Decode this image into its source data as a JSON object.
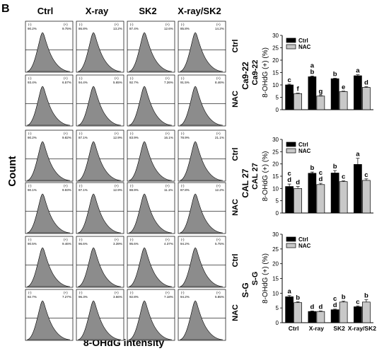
{
  "panel_label": "B",
  "flow": {
    "columns": [
      "Ctrl",
      "X-ray",
      "SK2",
      "X-ray/SK2"
    ],
    "y_title": "Count",
    "x_title": "8-OHdG intensity",
    "neg_label": "(-)",
    "pos_label": "(+)",
    "rows": [
      {
        "group": "Ca9-22",
        "label": "Ctrl",
        "panels": [
          {
            "neg": "90.2%",
            "pos": "9.75%"
          },
          {
            "neg": "86.8%",
            "pos": "13.2%"
          },
          {
            "neg": "87.4%",
            "pos": "12.6%"
          },
          {
            "neg": "85.8%",
            "pos": "14.2%"
          }
        ]
      },
      {
        "group": "Ca9-22",
        "label": "NAC",
        "panels": [
          {
            "neg": "93.4%",
            "pos": "6.57%"
          },
          {
            "neg": "94.4%",
            "pos": "5.65%"
          },
          {
            "neg": "92.7%",
            "pos": "7.26%"
          },
          {
            "neg": "91.5%",
            "pos": "8.46%"
          }
        ]
      },
      {
        "group": "CAL 27",
        "label": "Ctrl",
        "panels": [
          {
            "neg": "90.2%",
            "pos": "9.82%"
          },
          {
            "neg": "87.1%",
            "pos": "12.9%"
          },
          {
            "neg": "83.9%",
            "pos": "16.1%"
          },
          {
            "neg": "78.9%",
            "pos": "21.1%"
          }
        ]
      },
      {
        "group": "CAL 27",
        "label": "NAC",
        "panels": [
          {
            "neg": "90.1%",
            "pos": "9.93%"
          },
          {
            "neg": "87.1%",
            "pos": "12.9%"
          },
          {
            "neg": "88.9%",
            "pos": "11.1%"
          },
          {
            "neg": "87.8%",
            "pos": "12.2%"
          }
        ]
      },
      {
        "group": "S-G",
        "label": "Ctrl",
        "panels": [
          {
            "neg": "90.5%",
            "pos": "9.46%"
          },
          {
            "neg": "96.6%",
            "pos": "3.39%"
          },
          {
            "neg": "95.6%",
            "pos": "4.37%"
          },
          {
            "neg": "94.2%",
            "pos": "5.75%"
          }
        ]
      },
      {
        "group": "S-G",
        "label": "NAC",
        "panels": [
          {
            "neg": "92.7%",
            "pos": "7.27%"
          },
          {
            "neg": "96.3%",
            "pos": "3.66%"
          },
          {
            "neg": "92.8%",
            "pos": "7.18%"
          },
          {
            "neg": "94.2%",
            "pos": "5.85%"
          }
        ]
      }
    ]
  },
  "chart_data": [
    {
      "type": "bar",
      "cell_line": "Ca9-22",
      "ylabel": "8-OHdG (+) (%)",
      "ylim": [
        0,
        30
      ],
      "yticks": [
        0,
        5,
        10,
        15,
        20,
        25,
        30
      ],
      "categories": [
        "Ctrl",
        "X-ray",
        "SK2",
        "X-ray/SK2"
      ],
      "legend": "top-left",
      "series": [
        {
          "name": "Ctrl",
          "color": "#000000",
          "values": [
            10.0,
            13.3,
            12.5,
            13.7
          ],
          "errors": [
            0.3,
            0.3,
            0.2,
            0.4
          ],
          "letters": [
            "c",
            "a\nb",
            "b",
            "a"
          ]
        },
        {
          "name": "NAC",
          "color": "#c8c8c8",
          "values": [
            6.5,
            5.5,
            7.3,
            9.0
          ],
          "errors": [
            0.2,
            0.2,
            0.2,
            0.3
          ],
          "letters": [
            "f",
            "g",
            "e",
            "d"
          ]
        }
      ]
    },
    {
      "type": "bar",
      "cell_line": "CAL 27",
      "ylabel": "8-OHdG (+) (%)",
      "ylim": [
        0,
        30
      ],
      "yticks": [
        0,
        5,
        10,
        15,
        20,
        25,
        30
      ],
      "categories": [
        "Ctrl",
        "X-ray",
        "SK2",
        "X-ray/SK2"
      ],
      "legend": "top-left",
      "series": [
        {
          "name": "Ctrl",
          "color": "#000000",
          "values": [
            10.8,
            16.2,
            16.3,
            19.8
          ],
          "errors": [
            1.0,
            0.5,
            1.0,
            2.5
          ],
          "letters": [
            "c\nd",
            "b",
            "b",
            "a"
          ]
        },
        {
          "name": "NAC",
          "color": "#c8c8c8",
          "values": [
            10.0,
            11.6,
            12.8,
            13.3
          ],
          "errors": [
            0.8,
            0.5,
            0.3,
            0.6
          ],
          "letters": [
            "d",
            "c\nd",
            "c",
            "c"
          ]
        }
      ]
    },
    {
      "type": "bar",
      "cell_line": "S-G",
      "ylabel": "8-OHdG (+) (%)",
      "ylim": [
        0,
        30
      ],
      "yticks": [
        0,
        5,
        10,
        15,
        20,
        25,
        30
      ],
      "categories": [
        "Ctrl",
        "X-ray",
        "SK2",
        "X-ray/SK2"
      ],
      "legend": "top-left",
      "series": [
        {
          "name": "Ctrl",
          "color": "#000000",
          "values": [
            8.8,
            3.8,
            4.4,
            5.4
          ],
          "errors": [
            0.4,
            0.2,
            0.2,
            0.3
          ],
          "letters": [
            "a",
            "d",
            "c\nd",
            "c"
          ]
        },
        {
          "name": "NAC",
          "color": "#c8c8c8",
          "values": [
            6.8,
            3.8,
            7.0,
            7.0
          ],
          "errors": [
            0.3,
            0.2,
            0.3,
            0.8
          ],
          "letters": [
            "b",
            "d",
            "b",
            "b"
          ]
        }
      ]
    }
  ]
}
